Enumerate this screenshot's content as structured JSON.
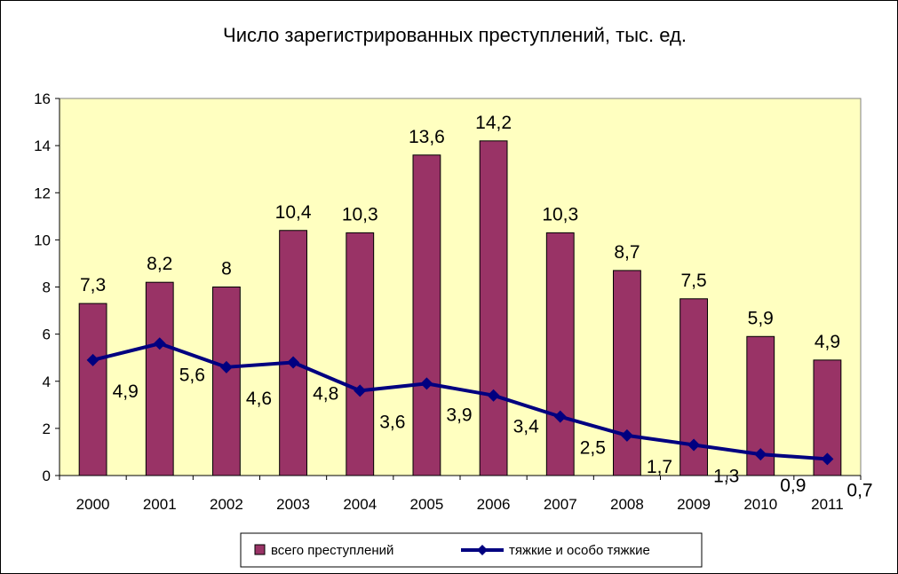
{
  "chart_data": {
    "type": "bar",
    "title": "Число зарегистрированных преступлений, тыс. ед.",
    "xlabel": "",
    "ylabel": "",
    "categories": [
      "2000",
      "2001",
      "2002",
      "2003",
      "2004",
      "2005",
      "2006",
      "2007",
      "2008",
      "2009",
      "2010",
      "2011"
    ],
    "ylim": [
      0,
      16
    ],
    "yticks": [
      0,
      2,
      4,
      6,
      8,
      10,
      12,
      14,
      16
    ],
    "grid": false,
    "legend_position": "bottom",
    "plot_background": "#FFFFC0",
    "series": [
      {
        "name": "всего преступлений",
        "type": "bar",
        "color": "#993366",
        "values": [
          7.3,
          8.2,
          8,
          10.4,
          10.3,
          13.6,
          14.2,
          10.3,
          8.7,
          7.5,
          5.9,
          4.9
        ],
        "labels": [
          "7,3",
          "8,2",
          "8",
          "10,4",
          "10,3",
          "13,6",
          "14,2",
          "10,3",
          "8,7",
          "7,5",
          "5,9",
          "4,9"
        ]
      },
      {
        "name": "тяжкие и особо тяжкие",
        "type": "line",
        "marker": "diamond",
        "color": "#000080",
        "values": [
          4.9,
          5.6,
          4.6,
          4.8,
          3.6,
          3.9,
          3.4,
          2.5,
          1.7,
          1.3,
          0.9,
          0.7
        ],
        "labels": [
          "4,9",
          "5,6",
          "4,6",
          "4,8",
          "3,6",
          "3,9",
          "3,4",
          "2,5",
          "1,7",
          "1,3",
          "0,9",
          "0,7"
        ]
      }
    ]
  }
}
